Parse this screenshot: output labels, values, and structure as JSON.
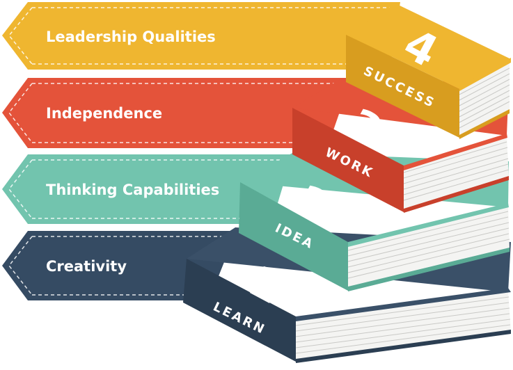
{
  "banners": [
    {
      "label": "Leadership Qualities",
      "color": "#efb630",
      "shade": "#d89d1f"
    },
    {
      "label": "Independence",
      "color": "#e4533a",
      "shade": "#c8402b"
    },
    {
      "label": "Thinking Capabilities",
      "color": "#72c4ae",
      "shade": "#5aab95"
    },
    {
      "label": "Creativity",
      "color": "#354b63",
      "shade": "#273a4e"
    }
  ],
  "books": [
    {
      "number": "1",
      "word": "LEARN",
      "color": "#3a5068",
      "shade": "#2b3e52"
    },
    {
      "number": "2",
      "word": "IDEA",
      "color": "#72c4ae",
      "shade": "#5aab95"
    },
    {
      "number": "3",
      "word": "WORK",
      "color": "#e4533a",
      "shade": "#c8402b"
    },
    {
      "number": "4",
      "word": "SUCCESS",
      "color": "#efb630",
      "shade": "#d89d1f"
    }
  ]
}
